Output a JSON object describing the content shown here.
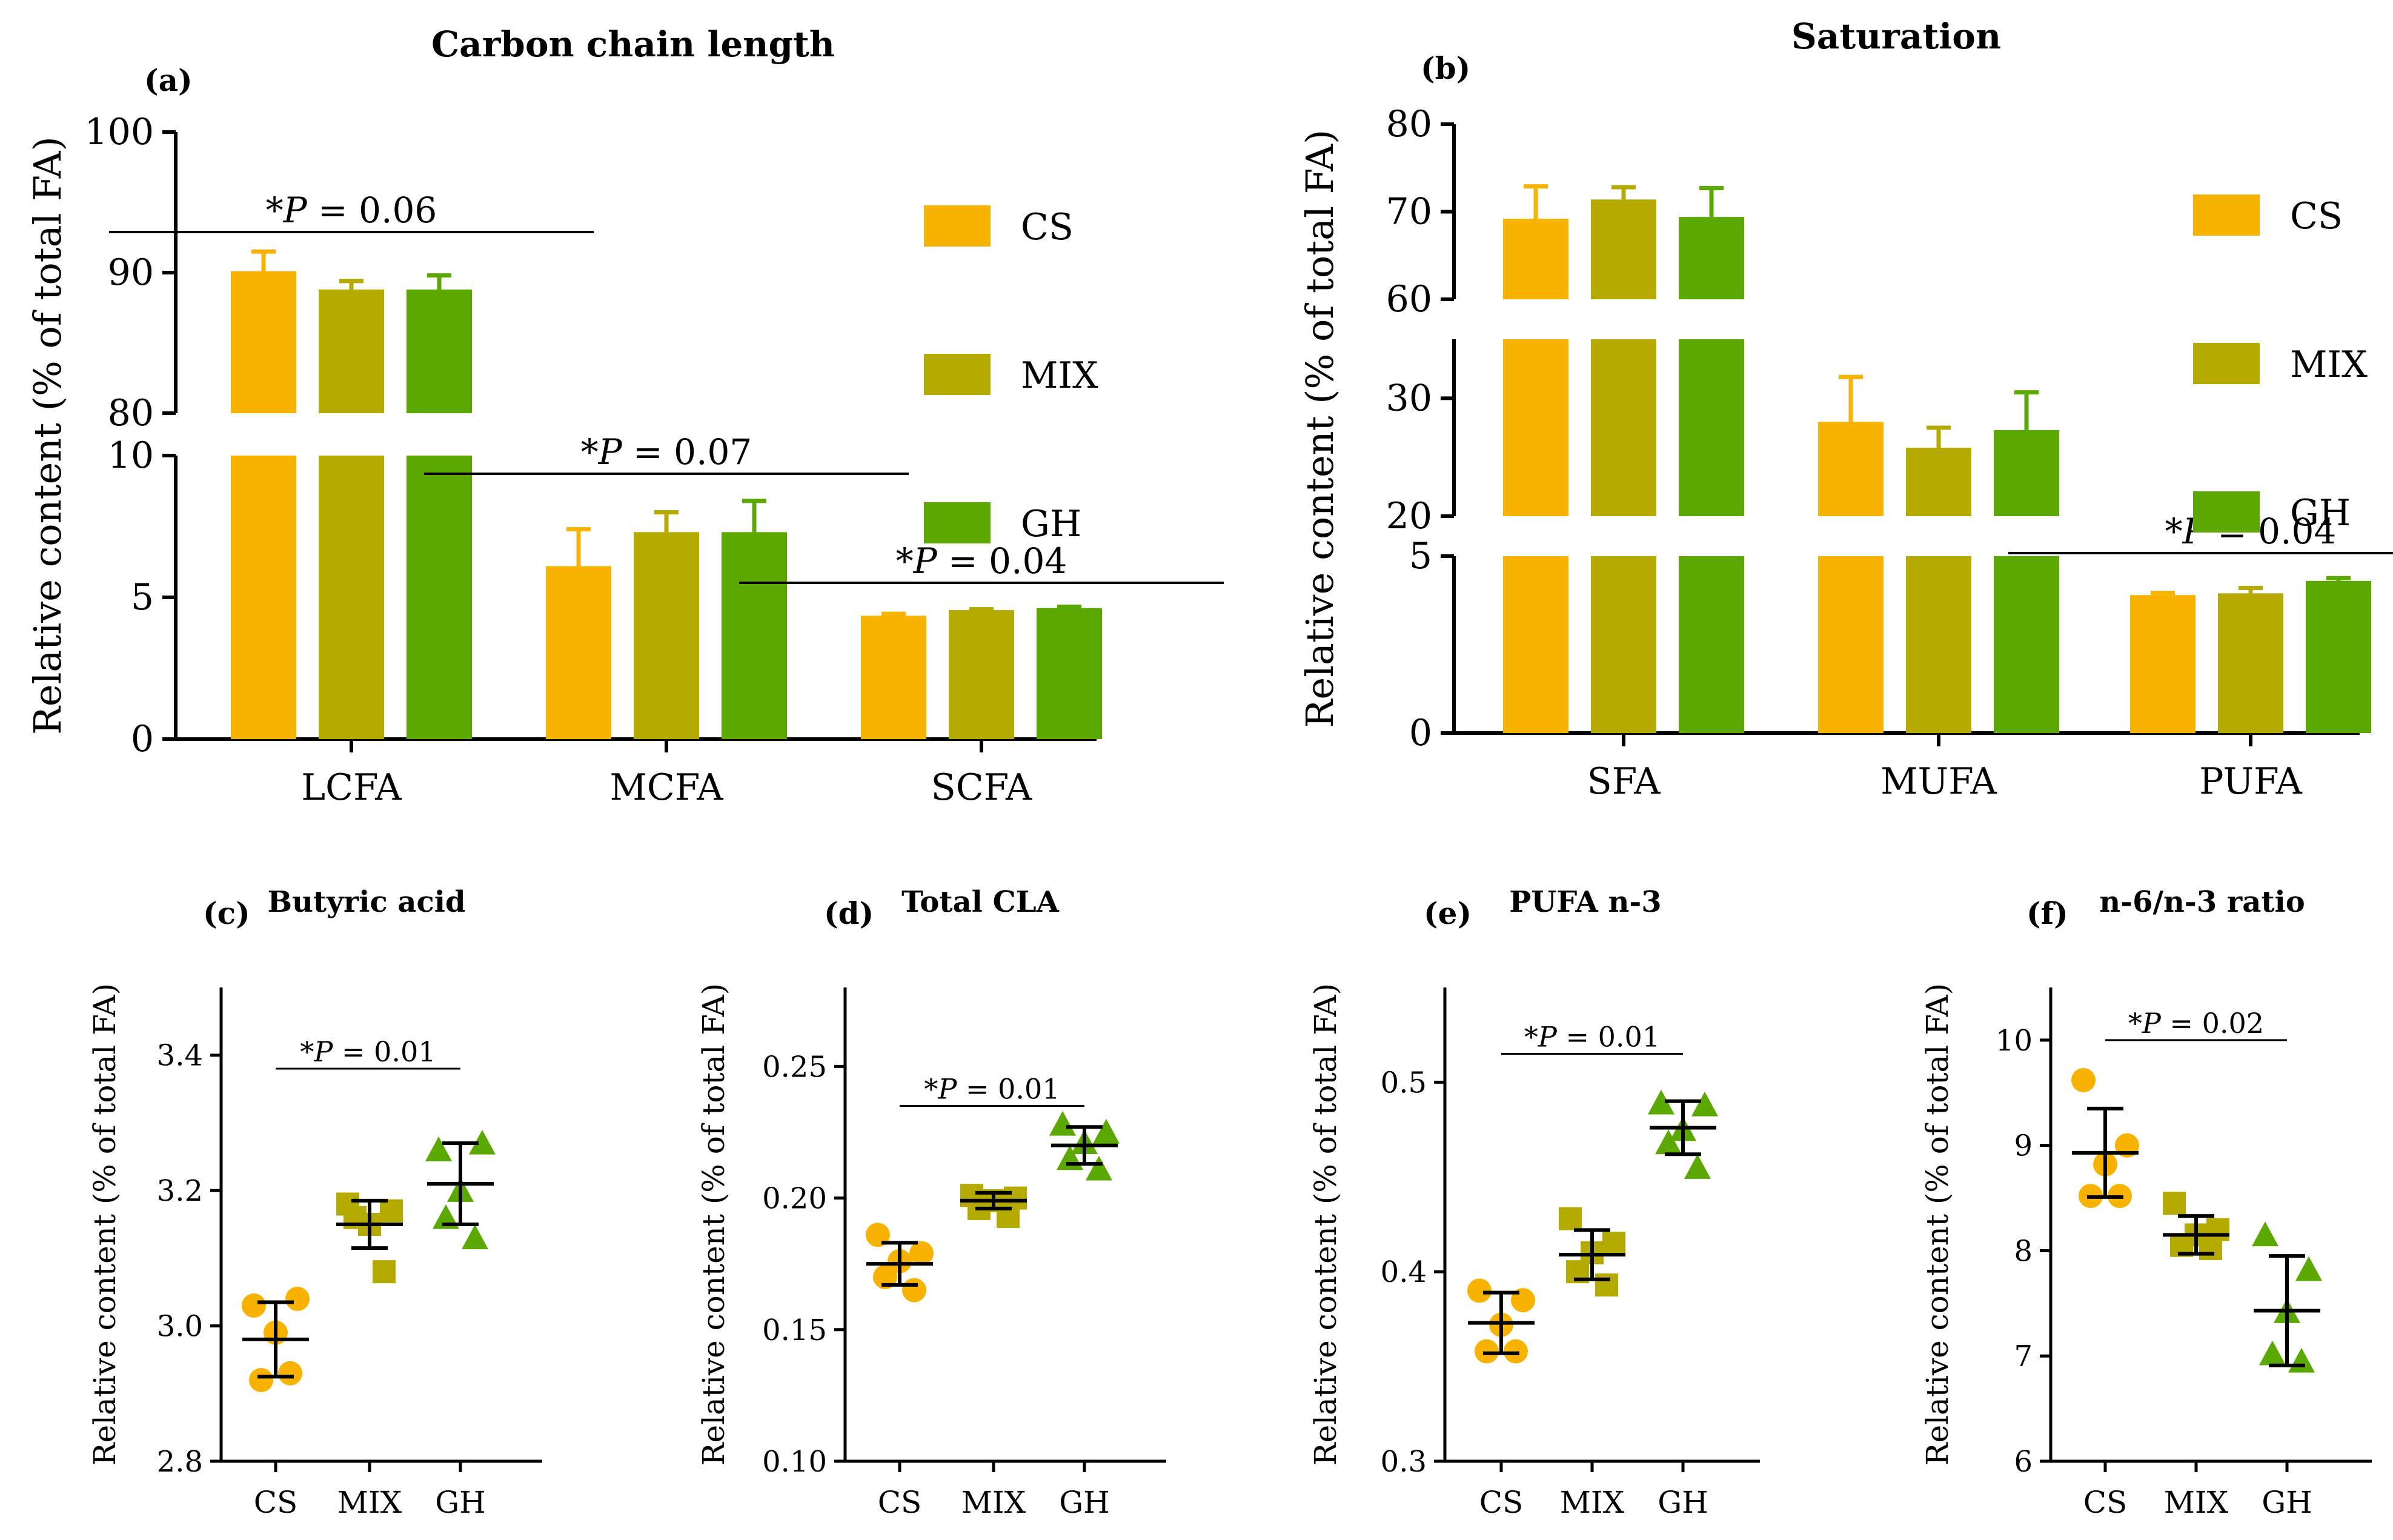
{
  "colors": {
    "CS": "#F8B200",
    "MIX": "#B4AA00",
    "GH": "#5AA800"
  },
  "chart_data": [
    {
      "id": "a",
      "type": "bar",
      "panel_label": "(a)",
      "title": "Carbon chain length",
      "ylabel": "Relative content (% of total FA)",
      "xlabel": "",
      "categories": [
        "LCFA",
        "MCFA",
        "SCFA"
      ],
      "series": [
        {
          "name": "CS",
          "values": [
            90.1,
            6.1,
            4.35
          ],
          "errors": [
            1.4,
            1.3,
            0.07
          ]
        },
        {
          "name": "MIX",
          "values": [
            88.8,
            7.3,
            4.55
          ],
          "errors": [
            0.6,
            0.7,
            0.03
          ]
        },
        {
          "name": "GH",
          "values": [
            88.8,
            7.3,
            4.62
          ],
          "errors": [
            1.0,
            1.1,
            0.05
          ]
        }
      ],
      "axis_segments": [
        {
          "range": [
            0,
            10
          ],
          "ticks": [
            0,
            5,
            10
          ]
        },
        {
          "range": [
            80,
            100
          ],
          "ticks": [
            80,
            90,
            100
          ]
        }
      ],
      "annotations": [
        {
          "text": "*P = 0.06",
          "prefix": "*",
          "italic": "P",
          "suffix": " = 0.06",
          "category": 0
        },
        {
          "text": "*P = 0.07",
          "prefix": "*",
          "italic": "P",
          "suffix": " = 0.07",
          "category": 1
        },
        {
          "text": "*P = 0.04",
          "prefix": "*",
          "italic": "P",
          "suffix": " = 0.04",
          "category": 2
        }
      ],
      "legend": {
        "placement": "top-right",
        "entries": [
          "CS",
          "MIX",
          "GH"
        ]
      }
    },
    {
      "id": "b",
      "type": "bar",
      "panel_label": "(b)",
      "title": "Saturation",
      "ylabel": "Relative content (% of total FA)",
      "xlabel": "",
      "categories": [
        "SFA",
        "MUFA",
        "PUFA"
      ],
      "series": [
        {
          "name": "CS",
          "values": [
            69.2,
            28.0,
            3.9
          ],
          "errors": [
            3.7,
            3.8,
            0.06
          ]
        },
        {
          "name": "MIX",
          "values": [
            71.4,
            25.8,
            3.95
          ],
          "errors": [
            1.4,
            1.7,
            0.15
          ]
        },
        {
          "name": "GH",
          "values": [
            69.4,
            27.3,
            4.3
          ],
          "errors": [
            3.3,
            3.2,
            0.08
          ]
        }
      ],
      "axis_segments": [
        {
          "range": [
            0,
            5
          ],
          "ticks": [
            0,
            5
          ]
        },
        {
          "range": [
            20,
            35
          ],
          "ticks": [
            20,
            30
          ]
        },
        {
          "range": [
            60,
            80
          ],
          "ticks": [
            60,
            70,
            80
          ]
        }
      ],
      "annotations": [
        {
          "text": "*P = 0.04",
          "prefix": "*",
          "italic": "P",
          "suffix": " = 0.04",
          "category": 2
        }
      ],
      "legend": {
        "placement": "top-right",
        "entries": [
          "CS",
          "MIX",
          "GH"
        ]
      }
    },
    {
      "id": "c",
      "type": "scatter",
      "panel_label": "(c)",
      "title": "Butyric acid",
      "ylabel": "Relative content (% of total FA)",
      "categories": [
        "CS",
        "MIX",
        "GH"
      ],
      "ylim": [
        2.8,
        3.5
      ],
      "yticks": [
        2.8,
        3.0,
        3.2,
        3.4
      ],
      "tick_labels": [
        "2.8",
        "3.0",
        "3.2",
        "3.4"
      ],
      "groups": [
        {
          "name": "CS",
          "marker": "circle",
          "points": [
            3.03,
            3.04,
            2.99,
            2.92,
            2.93
          ],
          "mean": 2.98,
          "sd": 0.055
        },
        {
          "name": "MIX",
          "marker": "square",
          "points": [
            3.18,
            3.17,
            3.15,
            3.16,
            3.08
          ],
          "mean": 3.15,
          "sd": 0.035
        },
        {
          "name": "GH",
          "marker": "triangle",
          "points": [
            3.26,
            3.27,
            3.2,
            3.16,
            3.13
          ],
          "mean": 3.21,
          "sd": 0.06
        }
      ],
      "annotation": {
        "text": "*P = 0.01",
        "prefix": "*",
        "italic": "P",
        "suffix": " = 0.01",
        "y": 3.38
      }
    },
    {
      "id": "d",
      "type": "scatter",
      "panel_label": "(d)",
      "title": "Total CLA",
      "ylabel": "Relative content (% of total FA)",
      "categories": [
        "CS",
        "MIX",
        "GH"
      ],
      "ylim": [
        0.1,
        0.28
      ],
      "yticks": [
        0.1,
        0.15,
        0.2,
        0.25
      ],
      "tick_labels": [
        "0.10",
        "0.15",
        "0.20",
        "0.25"
      ],
      "groups": [
        {
          "name": "CS",
          "marker": "circle",
          "points": [
            0.186,
            0.179,
            0.176,
            0.17,
            0.165
          ],
          "mean": 0.175,
          "sd": 0.008
        },
        {
          "name": "MIX",
          "marker": "square",
          "points": [
            0.201,
            0.2,
            0.199,
            0.196,
            0.193
          ],
          "mean": 0.199,
          "sd": 0.003
        },
        {
          "name": "GH",
          "marker": "triangle",
          "points": [
            0.228,
            0.225,
            0.221,
            0.215,
            0.211
          ],
          "mean": 0.22,
          "sd": 0.007
        }
      ],
      "annotation": {
        "text": "*P = 0.01",
        "prefix": "*",
        "italic": "P",
        "suffix": " = 0.01",
        "y": 0.235
      }
    },
    {
      "id": "e",
      "type": "scatter",
      "panel_label": "(e)",
      "title": "PUFA n-3",
      "ylabel": "Relative content (% of total FA)",
      "categories": [
        "CS",
        "MIX",
        "GH"
      ],
      "ylim": [
        0.3,
        0.55
      ],
      "yticks": [
        0.3,
        0.4,
        0.5
      ],
      "tick_labels": [
        "0.3",
        "0.4",
        "0.5"
      ],
      "groups": [
        {
          "name": "CS",
          "marker": "circle",
          "points": [
            0.39,
            0.385,
            0.372,
            0.358,
            0.358
          ],
          "mean": 0.373,
          "sd": 0.016
        },
        {
          "name": "MIX",
          "marker": "square",
          "points": [
            0.428,
            0.415,
            0.41,
            0.4,
            0.393
          ],
          "mean": 0.409,
          "sd": 0.013
        },
        {
          "name": "GH",
          "marker": "triangle",
          "points": [
            0.489,
            0.488,
            0.475,
            0.468,
            0.455
          ],
          "mean": 0.476,
          "sd": 0.014
        }
      ],
      "annotation": {
        "text": "*P = 0.01",
        "prefix": "*",
        "italic": "P",
        "suffix": " = 0.01",
        "y": 0.515
      }
    },
    {
      "id": "f",
      "type": "scatter",
      "panel_label": "(f)",
      "title": "n-6/n-3 ratio",
      "ylabel": "Relative content (% of total FA)",
      "categories": [
        "CS",
        "MIX",
        "GH"
      ],
      "ylim": [
        6,
        10.5
      ],
      "yticks": [
        6,
        7,
        8,
        9,
        10
      ],
      "tick_labels": [
        "6",
        "7",
        "8",
        "9",
        "10"
      ],
      "groups": [
        {
          "name": "CS",
          "marker": "circle",
          "points": [
            9.62,
            9.0,
            8.82,
            8.52,
            8.52
          ],
          "mean": 8.93,
          "sd": 0.42
        },
        {
          "name": "MIX",
          "marker": "square",
          "points": [
            8.45,
            8.2,
            8.15,
            8.05,
            8.02
          ],
          "mean": 8.15,
          "sd": 0.18
        },
        {
          "name": "GH",
          "marker": "triangle",
          "points": [
            8.15,
            7.82,
            7.42,
            7.02,
            6.95
          ],
          "mean": 7.43,
          "sd": 0.52
        }
      ],
      "annotation": {
        "text": "*P = 0.02",
        "prefix": "*",
        "italic": "P",
        "suffix": " = 0.02",
        "y": 10.0
      }
    }
  ]
}
